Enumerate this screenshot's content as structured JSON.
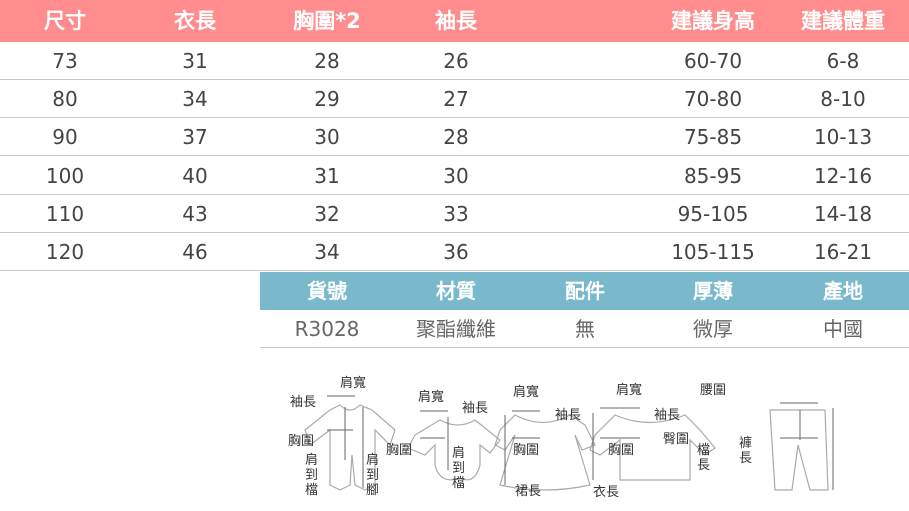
{
  "size_table": {
    "headers": [
      "尺寸",
      "衣長",
      "胸圍*2",
      "袖長",
      "建議身高",
      "建議體重"
    ],
    "rows": [
      [
        "73",
        "31",
        "28",
        "26",
        "60-70",
        "6-8"
      ],
      [
        "80",
        "34",
        "29",
        "27",
        "70-80",
        "8-10"
      ],
      [
        "90",
        "37",
        "30",
        "28",
        "75-85",
        "10-13"
      ],
      [
        "100",
        "40",
        "31",
        "30",
        "85-95",
        "12-16"
      ],
      [
        "110",
        "43",
        "32",
        "33",
        "95-105",
        "14-18"
      ],
      [
        "120",
        "46",
        "34",
        "36",
        "105-115",
        "16-21"
      ]
    ]
  },
  "info_table": {
    "headers": [
      "貨號",
      "材質",
      "配件",
      "厚薄",
      "產地"
    ],
    "values": [
      "R3028",
      "聚酯纖維",
      "無",
      "微厚",
      "中國"
    ]
  },
  "diagram_labels": {
    "romper": {
      "shoulder": "肩寬",
      "sleeve": "袖長",
      "chest": "胸圍",
      "shoulder_crotch": "肩到檔",
      "shoulder_foot": "肩到腳"
    },
    "bodysuit": {
      "shoulder": "肩寬",
      "sleeve": "袖長",
      "chest": "胸圍",
      "shoulder_crotch": "肩到檔"
    },
    "dress": {
      "shoulder": "肩寬",
      "sleeve": "袖長",
      "chest": "胸圍",
      "skirt": "裙長"
    },
    "top": {
      "shoulder": "肩寬",
      "sleeve": "袖長",
      "chest": "胸圍",
      "length": "衣長"
    },
    "pants": {
      "waist": "腰圍",
      "hip": "臀圍",
      "crotch": "檔長",
      "length": "褲長"
    }
  },
  "colors": {
    "size_header": "#ff8d8d",
    "info_header": "#7ab8cc"
  }
}
